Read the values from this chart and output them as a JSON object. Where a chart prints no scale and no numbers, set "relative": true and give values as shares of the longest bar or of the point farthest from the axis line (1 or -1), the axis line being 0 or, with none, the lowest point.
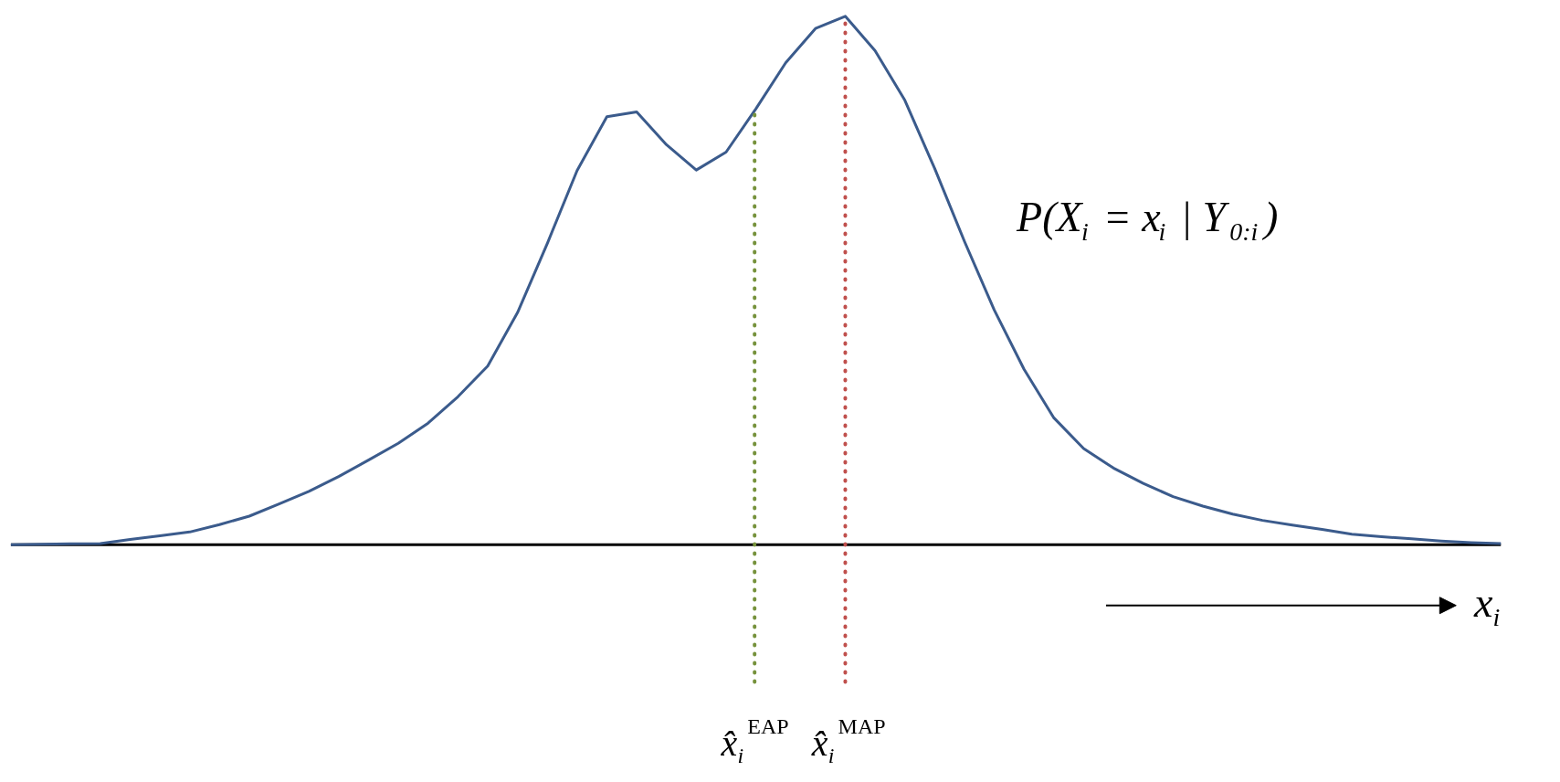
{
  "chart_data": {
    "type": "line",
    "relative": true,
    "tick_labels": false,
    "grid": false,
    "line_style": "solid",
    "xlabel": "x$_{i}$",
    "categories": [
      null,
      null,
      null,
      null,
      null,
      null,
      null,
      null,
      null,
      null,
      null,
      null,
      null,
      null,
      null,
      null,
      null,
      null,
      null,
      null,
      null,
      null,
      null,
      null,
      null,
      null,
      null,
      null,
      null,
      null,
      null,
      null,
      null,
      null,
      null,
      null,
      null,
      null,
      null,
      null,
      null,
      null,
      null,
      null,
      null,
      null,
      null,
      null,
      null,
      null,
      null
    ],
    "series": [
      {
        "color": "#3b5b8c",
        "values": [
          0,
          0.001,
          0.0015,
          0.002,
          0.01,
          0.017,
          0.024,
          0.038,
          0.054,
          0.077,
          0.101,
          0.129,
          0.16,
          0.192,
          0.23,
          0.28,
          0.338,
          0.439,
          0.57,
          0.708,
          0.81,
          0.819,
          0.757,
          0.709,
          0.743,
          0.825,
          0.912,
          0.977,
          1.0,
          0.935,
          0.841,
          0.712,
          0.574,
          0.444,
          0.332,
          0.24,
          0.182,
          0.145,
          0.116,
          0.091,
          0.073,
          0.058,
          0.046,
          0.037,
          0.029,
          0.02,
          0.015,
          0.011,
          0.007,
          0.004,
          0.002
        ]
      }
    ],
    "annotations": [
      "P(X$_{i}$ = x$_{i}$ | Y$_{0:i}$)",
      "x̂$_{i}$$^{EAP}$",
      "x̂$_{i}$$^{MAP}$"
    ]
  }
}
